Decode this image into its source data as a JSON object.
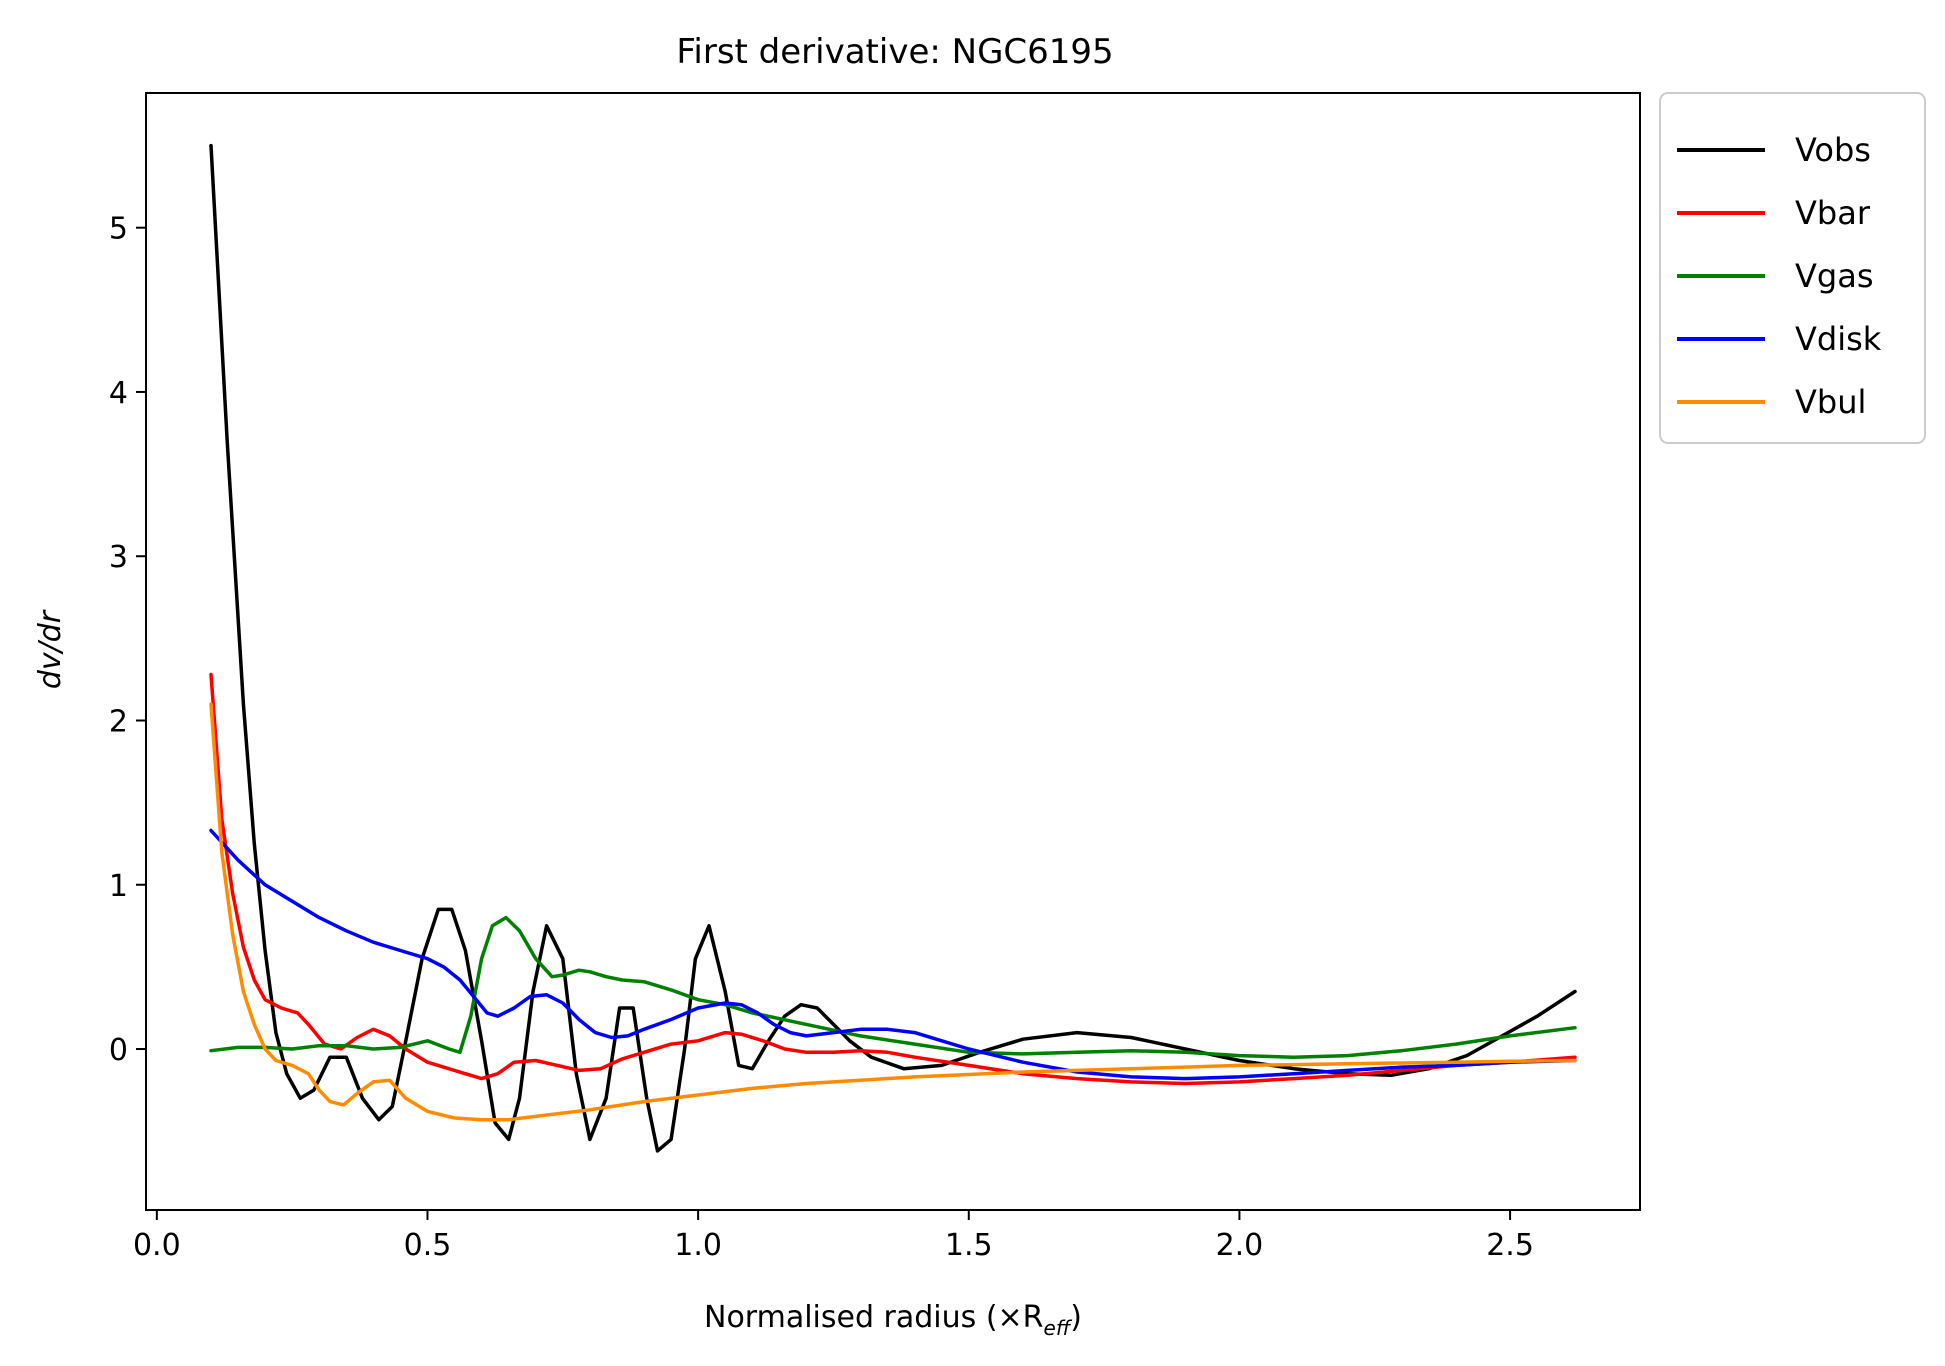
{
  "chart_data": {
    "type": "line",
    "title": "First derivative: NGC6195",
    "xlabel": "Normalised radius (×R",
    "xlabel_sub": "eff",
    "xlabel_end": ")",
    "ylabel": "dv/dr",
    "xlim": [
      -0.02,
      2.74
    ],
    "ylim": [
      -0.98,
      5.82
    ],
    "xticks": [
      0.0,
      0.5,
      1.0,
      1.5,
      2.0,
      2.5
    ],
    "xtick_labels": [
      "0.0",
      "0.5",
      "1.0",
      "1.5",
      "2.0",
      "2.5"
    ],
    "yticks": [
      0,
      1,
      2,
      3,
      4,
      5
    ],
    "ytick_labels": [
      "0",
      "1",
      "2",
      "3",
      "4",
      "5"
    ],
    "grid": false,
    "legend_position": "outside top-right",
    "series": [
      {
        "name": "Vobs",
        "color": "#000000",
        "x": [
          0.1,
          0.13,
          0.16,
          0.18,
          0.2,
          0.22,
          0.24,
          0.265,
          0.29,
          0.32,
          0.35,
          0.38,
          0.41,
          0.435,
          0.46,
          0.49,
          0.52,
          0.545,
          0.57,
          0.6,
          0.625,
          0.65,
          0.67,
          0.695,
          0.72,
          0.75,
          0.775,
          0.8,
          0.83,
          0.855,
          0.88,
          0.905,
          0.925,
          0.95,
          0.975,
          0.995,
          1.02,
          1.05,
          1.075,
          1.1,
          1.13,
          1.16,
          1.19,
          1.22,
          1.25,
          1.28,
          1.32,
          1.38,
          1.45,
          1.52,
          1.6,
          1.7,
          1.8,
          1.9,
          2.0,
          2.1,
          2.2,
          2.28,
          2.35,
          2.42,
          2.48,
          2.55,
          2.62
        ],
        "y": [
          5.5,
          3.7,
          2.1,
          1.25,
          0.6,
          0.1,
          -0.15,
          -0.3,
          -0.25,
          -0.05,
          -0.05,
          -0.3,
          -0.43,
          -0.35,
          0.05,
          0.55,
          0.85,
          0.85,
          0.6,
          0.05,
          -0.45,
          -0.55,
          -0.3,
          0.35,
          0.75,
          0.55,
          -0.15,
          -0.55,
          -0.3,
          0.25,
          0.25,
          -0.3,
          -0.62,
          -0.55,
          0.0,
          0.55,
          0.75,
          0.35,
          -0.1,
          -0.12,
          0.05,
          0.2,
          0.27,
          0.25,
          0.15,
          0.05,
          -0.05,
          -0.12,
          -0.1,
          -0.02,
          0.06,
          0.1,
          0.07,
          0.0,
          -0.07,
          -0.12,
          -0.15,
          -0.16,
          -0.12,
          -0.04,
          0.07,
          0.2,
          0.35
        ]
      },
      {
        "name": "Vbar",
        "color": "#ff0000",
        "x": [
          0.1,
          0.12,
          0.14,
          0.16,
          0.18,
          0.2,
          0.23,
          0.26,
          0.28,
          0.31,
          0.34,
          0.37,
          0.4,
          0.43,
          0.46,
          0.5,
          0.55,
          0.6,
          0.63,
          0.66,
          0.7,
          0.74,
          0.78,
          0.82,
          0.86,
          0.9,
          0.95,
          1.0,
          1.05,
          1.08,
          1.12,
          1.16,
          1.2,
          1.25,
          1.3,
          1.35,
          1.4,
          1.5,
          1.6,
          1.7,
          1.8,
          1.9,
          2.0,
          2.1,
          2.2,
          2.3,
          2.4,
          2.5,
          2.62
        ],
        "y": [
          2.28,
          1.4,
          0.95,
          0.62,
          0.42,
          0.3,
          0.25,
          0.22,
          0.15,
          0.03,
          0.0,
          0.07,
          0.12,
          0.08,
          0.0,
          -0.08,
          -0.13,
          -0.18,
          -0.15,
          -0.08,
          -0.07,
          -0.1,
          -0.13,
          -0.12,
          -0.06,
          -0.02,
          0.03,
          0.05,
          0.1,
          0.09,
          0.05,
          0.0,
          -0.02,
          -0.02,
          -0.01,
          -0.02,
          -0.05,
          -0.1,
          -0.15,
          -0.18,
          -0.2,
          -0.21,
          -0.2,
          -0.18,
          -0.16,
          -0.13,
          -0.1,
          -0.08,
          -0.05
        ]
      },
      {
        "name": "Vgas",
        "color": "#008000",
        "x": [
          0.1,
          0.15,
          0.2,
          0.25,
          0.3,
          0.35,
          0.4,
          0.45,
          0.5,
          0.54,
          0.56,
          0.58,
          0.6,
          0.62,
          0.645,
          0.67,
          0.7,
          0.73,
          0.75,
          0.78,
          0.8,
          0.83,
          0.86,
          0.9,
          0.95,
          1.0,
          1.05,
          1.1,
          1.2,
          1.3,
          1.4,
          1.5,
          1.6,
          1.7,
          1.8,
          1.9,
          2.0,
          2.1,
          2.2,
          2.3,
          2.4,
          2.5,
          2.62
        ],
        "y": [
          -0.01,
          0.01,
          0.01,
          0.0,
          0.02,
          0.02,
          0.0,
          0.01,
          0.05,
          0.0,
          -0.02,
          0.2,
          0.55,
          0.75,
          0.8,
          0.72,
          0.55,
          0.44,
          0.45,
          0.48,
          0.47,
          0.44,
          0.42,
          0.41,
          0.36,
          0.3,
          0.27,
          0.22,
          0.15,
          0.08,
          0.03,
          -0.02,
          -0.03,
          -0.02,
          -0.01,
          -0.02,
          -0.04,
          -0.05,
          -0.04,
          -0.01,
          0.03,
          0.08,
          0.13
        ]
      },
      {
        "name": "Vdisk",
        "color": "#0000ff",
        "x": [
          0.1,
          0.15,
          0.2,
          0.25,
          0.3,
          0.35,
          0.4,
          0.45,
          0.5,
          0.53,
          0.56,
          0.59,
          0.61,
          0.63,
          0.66,
          0.69,
          0.72,
          0.75,
          0.78,
          0.81,
          0.84,
          0.87,
          0.9,
          0.95,
          1.0,
          1.05,
          1.08,
          1.11,
          1.14,
          1.17,
          1.2,
          1.25,
          1.3,
          1.35,
          1.4,
          1.45,
          1.5,
          1.6,
          1.7,
          1.8,
          1.9,
          2.0,
          2.1,
          2.2,
          2.3,
          2.4,
          2.5,
          2.62
        ],
        "y": [
          1.33,
          1.15,
          1.0,
          0.9,
          0.8,
          0.72,
          0.65,
          0.6,
          0.55,
          0.5,
          0.42,
          0.3,
          0.22,
          0.2,
          0.25,
          0.32,
          0.33,
          0.28,
          0.18,
          0.1,
          0.07,
          0.08,
          0.12,
          0.18,
          0.25,
          0.28,
          0.27,
          0.22,
          0.15,
          0.1,
          0.08,
          0.1,
          0.12,
          0.12,
          0.1,
          0.05,
          0.0,
          -0.08,
          -0.14,
          -0.17,
          -0.18,
          -0.17,
          -0.15,
          -0.13,
          -0.11,
          -0.1,
          -0.08,
          -0.07
        ]
      },
      {
        "name": "Vbul",
        "color": "#ff8c00",
        "x": [
          0.1,
          0.12,
          0.14,
          0.16,
          0.18,
          0.2,
          0.22,
          0.25,
          0.28,
          0.3,
          0.32,
          0.345,
          0.37,
          0.4,
          0.43,
          0.46,
          0.5,
          0.55,
          0.6,
          0.65,
          0.7,
          0.8,
          0.9,
          1.0,
          1.1,
          1.2,
          1.3,
          1.4,
          1.5,
          1.6,
          1.7,
          1.8,
          1.9,
          2.0,
          2.1,
          2.2,
          2.3,
          2.4,
          2.5,
          2.62
        ],
        "y": [
          2.1,
          1.2,
          0.7,
          0.35,
          0.15,
          0.0,
          -0.07,
          -0.1,
          -0.15,
          -0.25,
          -0.32,
          -0.34,
          -0.27,
          -0.2,
          -0.19,
          -0.3,
          -0.38,
          -0.42,
          -0.43,
          -0.43,
          -0.41,
          -0.37,
          -0.32,
          -0.28,
          -0.24,
          -0.21,
          -0.19,
          -0.17,
          -0.155,
          -0.14,
          -0.13,
          -0.12,
          -0.11,
          -0.1,
          -0.095,
          -0.09,
          -0.085,
          -0.08,
          -0.075,
          -0.07
        ]
      }
    ]
  }
}
